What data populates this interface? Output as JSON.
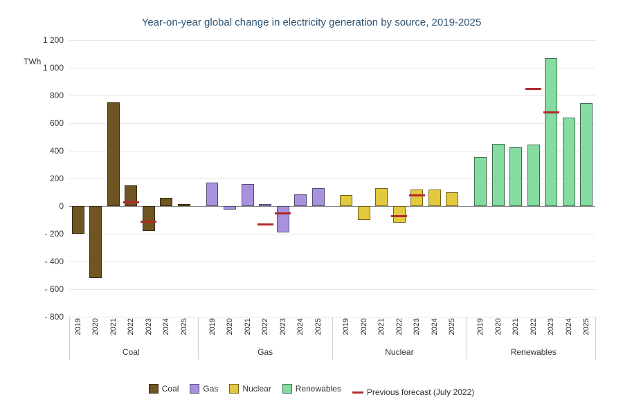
{
  "title": "Year-on-year global change in electricity generation by source, 2019-2025",
  "ylabel": "TWh",
  "chart": {
    "type": "bar",
    "background_color": "#ffffff",
    "grid_color": "#e6e6e6",
    "zero_line_color": "#888888",
    "title_color": "#2c5173",
    "title_fontsize": 15,
    "axis_fontsize": 12,
    "ylim": [
      -800,
      1200
    ],
    "ytick_step": 200,
    "yticks": [
      -800,
      -600,
      -400,
      -200,
      0,
      200,
      400,
      600,
      800,
      1000,
      1200
    ],
    "years": [
      "2019",
      "2020",
      "2021",
      "2022",
      "2023",
      "2024",
      "2025"
    ],
    "bar_width": 0.7,
    "group_gap": 0.6,
    "marker": {
      "label": "Previous forecast (July 2022)",
      "color": "#b02a2a",
      "width": 0.9
    },
    "groups": [
      {
        "name": "Coal",
        "color": "#6f5521",
        "values": [
          -200,
          -520,
          750,
          150,
          -180,
          60,
          15
        ],
        "forecast": [
          null,
          null,
          null,
          30,
          -110,
          null,
          null
        ]
      },
      {
        "name": "Gas",
        "color": "#a992dd",
        "values": [
          170,
          -25,
          160,
          15,
          -190,
          85,
          130
        ],
        "forecast": [
          null,
          null,
          null,
          -130,
          -50,
          null,
          null
        ]
      },
      {
        "name": "Nuclear",
        "color": "#e2c93e",
        "values": [
          80,
          -100,
          130,
          -120,
          120,
          120,
          100
        ],
        "forecast": [
          null,
          null,
          null,
          -70,
          80,
          null,
          null
        ]
      },
      {
        "name": "Renewables",
        "color": "#84dca0",
        "values": [
          355,
          450,
          425,
          445,
          1070,
          640,
          745
        ],
        "forecast": [
          null,
          null,
          null,
          850,
          680,
          null,
          null
        ]
      }
    ]
  }
}
